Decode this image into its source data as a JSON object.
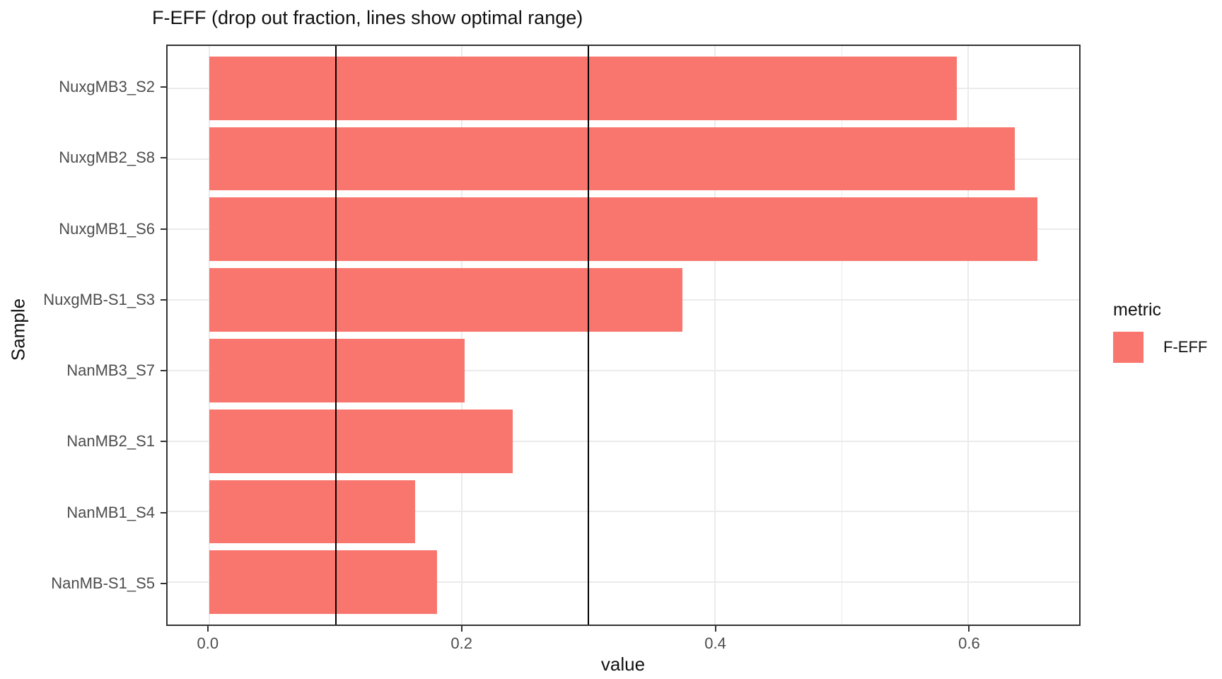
{
  "chart_data": {
    "type": "bar",
    "orientation": "horizontal",
    "title": "F-EFF (drop out fraction, lines show optimal range)",
    "xlabel": "value",
    "ylabel": "Sample",
    "categories": [
      "NuxgMB3_S2",
      "NuxgMB2_S8",
      "NuxgMB1_S6",
      "NuxgMB-S1_S3",
      "NanMB3_S7",
      "NanMB2_S1",
      "NanMB1_S4",
      "NanMB-S1_S5"
    ],
    "values": [
      0.591,
      0.637,
      0.655,
      0.374,
      0.202,
      0.24,
      0.163,
      0.18
    ],
    "xlim": [
      -0.0328,
      0.6878
    ],
    "x_major_ticks": [
      0.0,
      0.2,
      0.4,
      0.6
    ],
    "x_tick_labels": [
      "0.0",
      "0.2",
      "0.4",
      "0.6"
    ],
    "x_minor_gridlines": [
      0.1,
      0.3,
      0.5
    ],
    "reference_lines": [
      0.1,
      0.3
    ],
    "grid": "on",
    "legend": {
      "title": "metric",
      "position": "right",
      "entries": [
        {
          "label": "F-EFF",
          "color": "#F8766D"
        }
      ]
    },
    "colors": {
      "bar": "#F8766D",
      "grid_major": "#EBEBEB",
      "grid_minor": "#EBEBEB",
      "panel_border": "#333333",
      "reference_line": "#000000",
      "axis_text": "#4D4D4D"
    }
  }
}
